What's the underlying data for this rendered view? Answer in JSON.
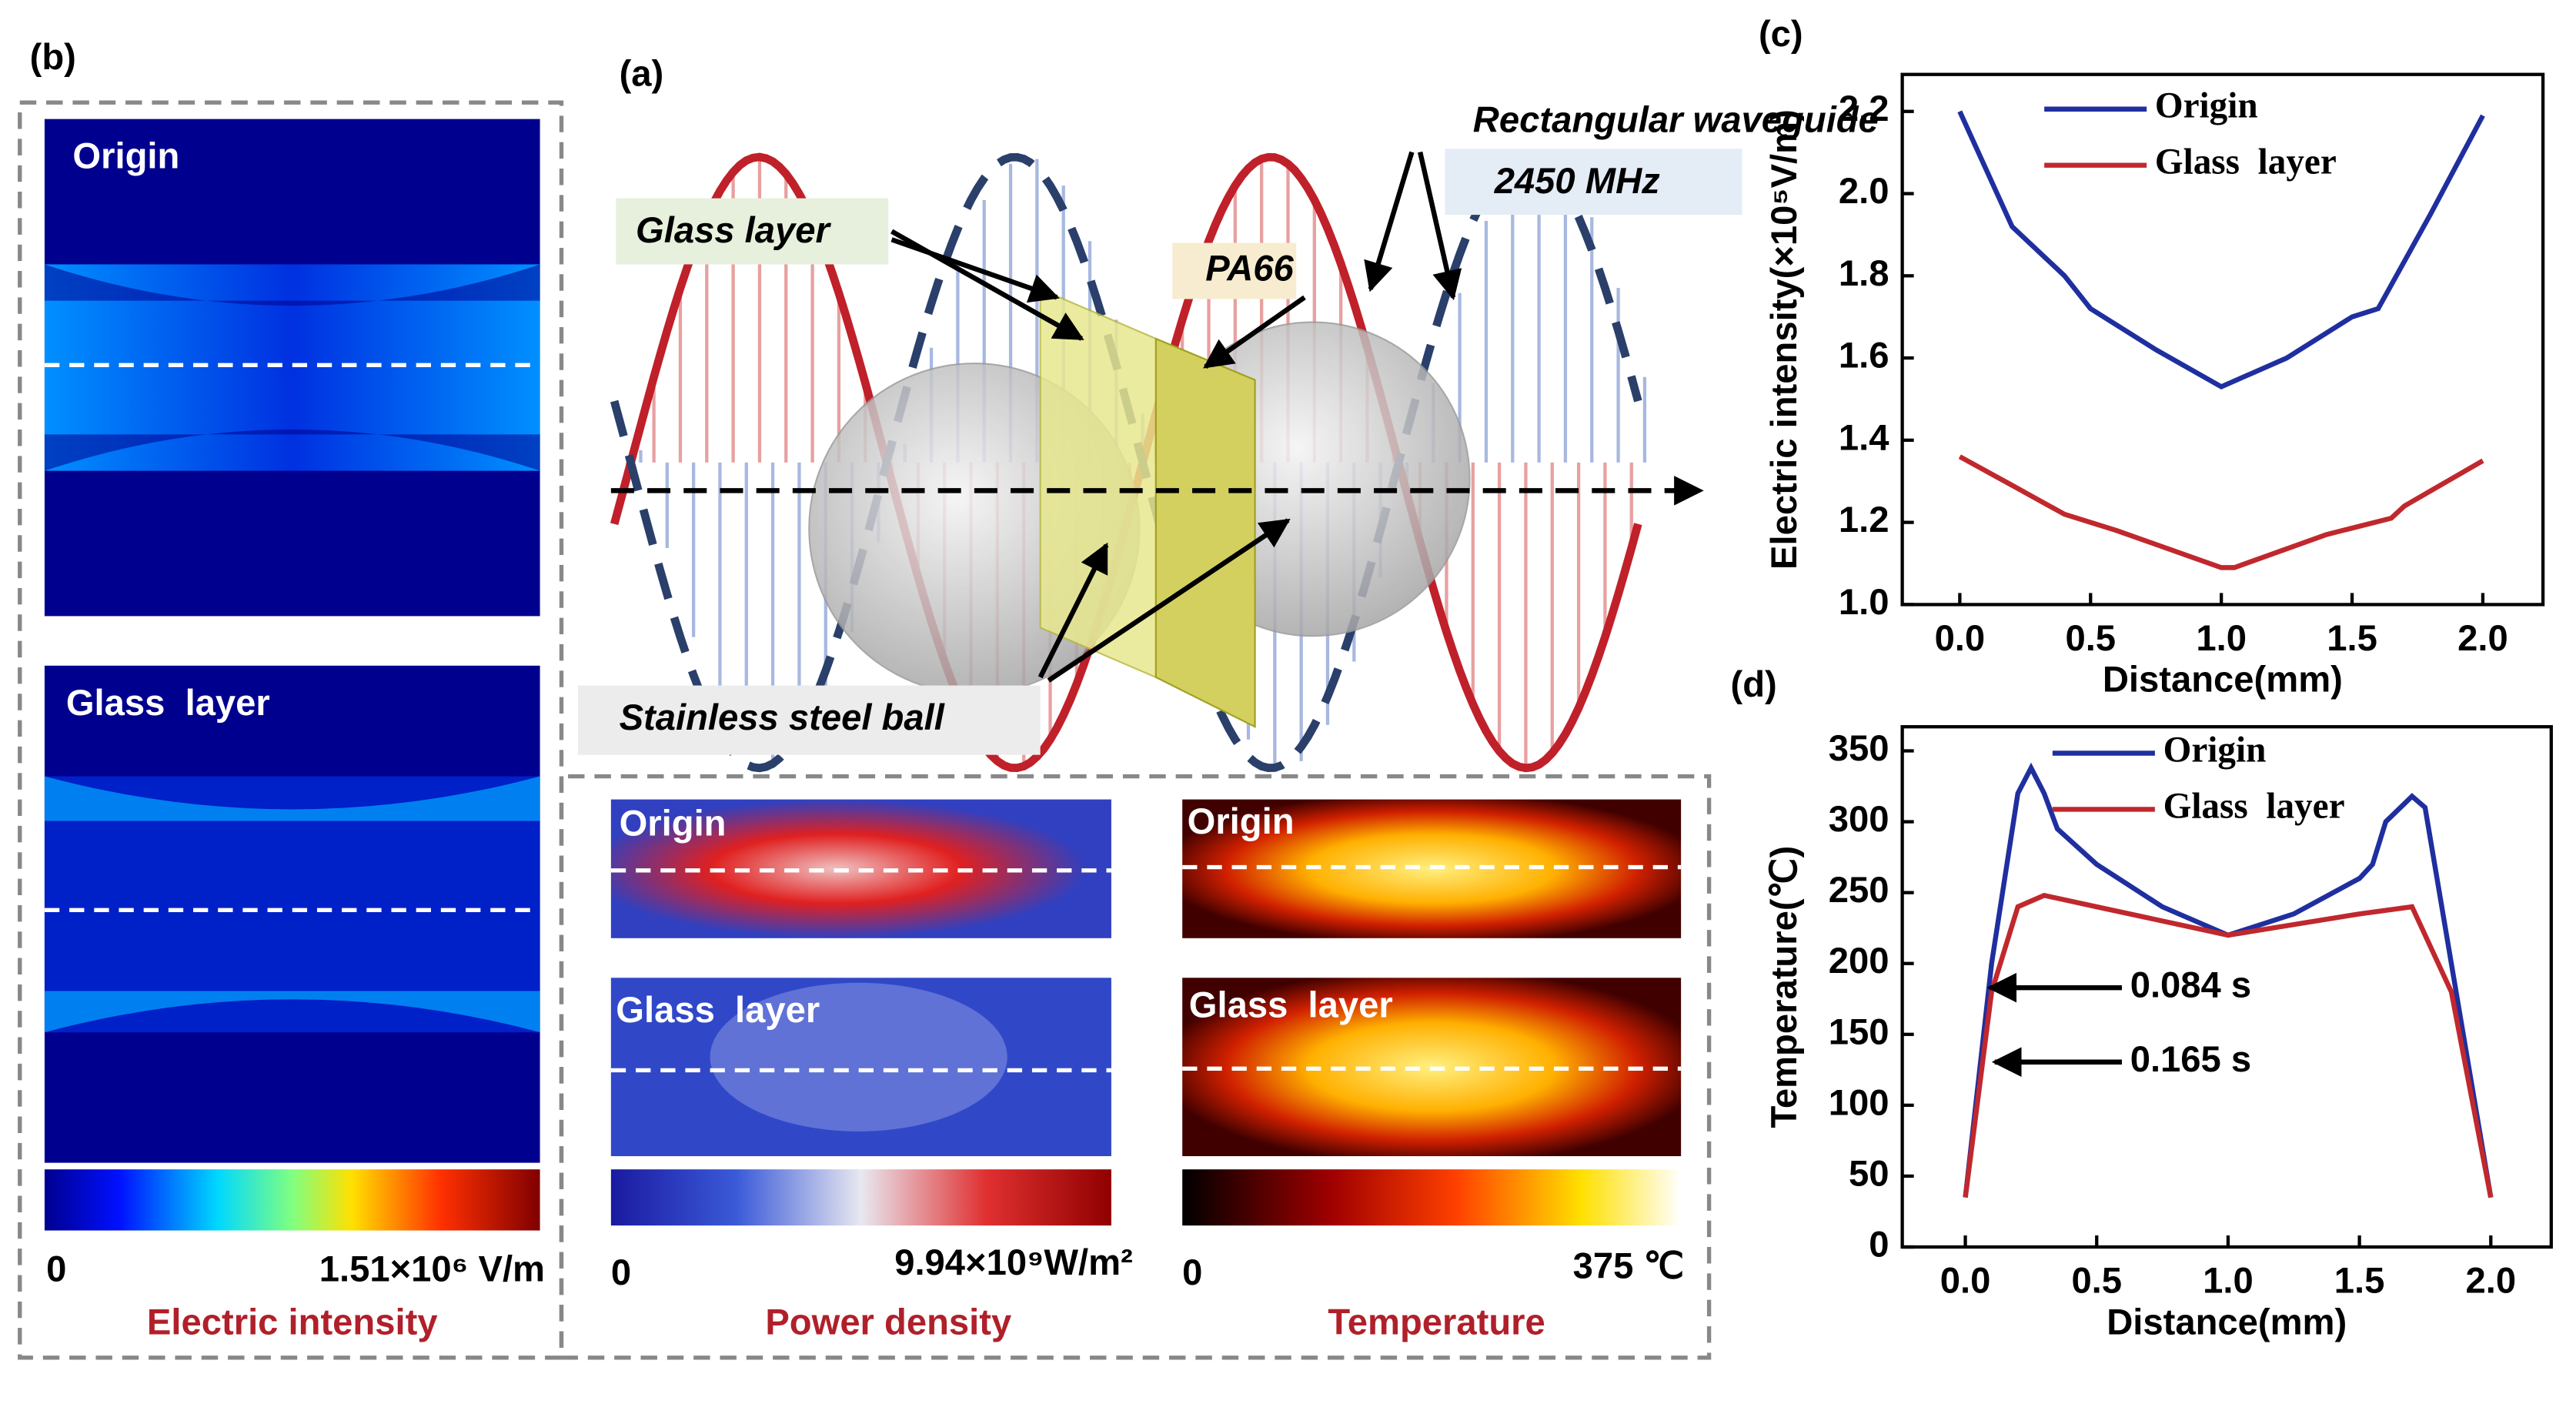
{
  "panels": {
    "b": {
      "label": "(b)",
      "maps": [
        "Origin",
        "Glass  layer"
      ],
      "colorbar_min": "0",
      "colorbar_max": "1.51×10⁶ V/m",
      "colorbar_title": "Electric intensity"
    },
    "a": {
      "label": "(a)",
      "callouts": [
        "Rectangular waveguide",
        "2450 MHz",
        "Glass layer",
        "PA66",
        "Stainless steel ball"
      ],
      "power": {
        "maps": [
          "Origin",
          "Glass  layer"
        ],
        "min": "0",
        "max": "9.94×10⁹W/m²",
        "title": "Power density"
      },
      "temperature": {
        "maps": [
          "Origin",
          "Glass  layer"
        ],
        "min": "0",
        "max": "375 ℃",
        "title": "Temperature"
      }
    }
  },
  "chart_data": [
    {
      "type": "line",
      "label": "(c)",
      "x_label": "Distance(mm)",
      "y_label": "Electric intensity(×10⁵V/m)",
      "xlim": [
        -0.22,
        2.23
      ],
      "ylim": [
        1.0,
        2.29
      ],
      "xticks": [
        {
          "value": 0,
          "label": "0.0"
        },
        {
          "value": 0.5,
          "label": "0.5"
        },
        {
          "value": 1,
          "label": "1.0"
        },
        {
          "value": 1.5,
          "label": "1.5"
        },
        {
          "value": 2,
          "label": "2.0"
        }
      ],
      "yticks": [
        {
          "value": 1,
          "label": "1.0"
        },
        1.2,
        1.4,
        1.6,
        1.8,
        {
          "value": 2,
          "label": "2.0"
        },
        2.2
      ],
      "series": [
        {
          "name": "Origin",
          "color": "#1f2f9f",
          "x": [
            0,
            0.2,
            0.4,
            0.5,
            0.75,
            1.0,
            1.25,
            1.5,
            1.6,
            1.8,
            2.0
          ],
          "values": [
            2.2,
            1.92,
            1.8,
            1.72,
            1.62,
            1.53,
            1.6,
            1.7,
            1.72,
            1.95,
            2.19
          ]
        },
        {
          "name": "Glass  layer",
          "color": "#c0282d",
          "x": [
            0,
            0.2,
            0.4,
            0.6,
            1.0,
            1.05,
            1.4,
            1.65,
            1.7,
            2.0
          ],
          "values": [
            1.36,
            1.29,
            1.22,
            1.18,
            1.09,
            1.09,
            1.17,
            1.21,
            1.24,
            1.35
          ]
        }
      ]
    },
    {
      "type": "line",
      "label": "(d)",
      "x_label": "Distance(mm)",
      "y_label": "Temperature(℃)",
      "xlim": [
        -0.24,
        2.23
      ],
      "ylim": [
        0,
        367
      ],
      "xticks": [
        {
          "value": 0,
          "label": "0.0"
        },
        {
          "value": 0.5,
          "label": "0.5"
        },
        {
          "value": 1,
          "label": "1.0"
        },
        {
          "value": 1.5,
          "label": "1.5"
        },
        {
          "value": 2,
          "label": "2.0"
        }
      ],
      "yticks": [
        0,
        50,
        100,
        150,
        200,
        250,
        300,
        350
      ],
      "series": [
        {
          "name": "Origin",
          "color": "#1f2f9f",
          "x": [
            0,
            0.1,
            0.2,
            0.25,
            0.3,
            0.35,
            0.5,
            0.75,
            1.0,
            1.25,
            1.5,
            1.55,
            1.6,
            1.7,
            1.75,
            1.85,
            2.0
          ],
          "values": [
            35,
            200,
            320,
            338,
            320,
            295,
            270,
            240,
            220,
            235,
            260,
            270,
            300,
            318,
            310,
            200,
            35
          ]
        },
        {
          "name": "Glass  layer",
          "color": "#c0282d",
          "x": [
            0,
            0.1,
            0.2,
            0.3,
            0.5,
            1.0,
            1.5,
            1.7,
            1.85,
            2.0
          ],
          "values": [
            35,
            180,
            240,
            248,
            240,
            220,
            235,
            240,
            180,
            35
          ]
        }
      ],
      "annotations": [
        "0.084 s",
        "0.165 s"
      ]
    }
  ]
}
